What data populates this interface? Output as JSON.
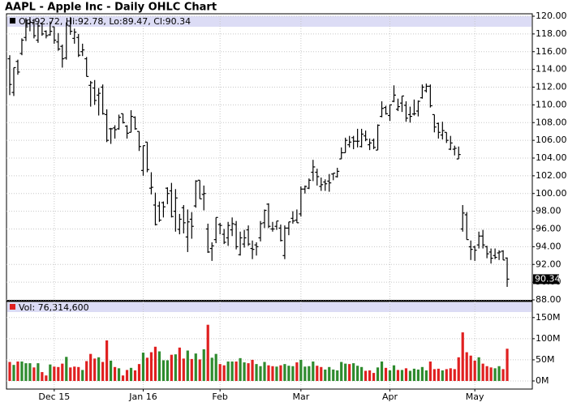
{
  "chart_data": {
    "type": "ohlc",
    "title": "AAPL - Apple Inc - Daily OHLC Chart",
    "legend_text": "Op:92.72, Hi:92.78, Lo:89.47, Cl:90.34",
    "bar_color": "#000000",
    "grid": true,
    "categories": [
      null,
      null,
      null,
      null,
      null,
      null,
      null,
      null,
      null,
      null,
      null,
      "Dec 15",
      null,
      null,
      null,
      null,
      null,
      null,
      null,
      null,
      null,
      null,
      null,
      null,
      null,
      null,
      null,
      null,
      null,
      null,
      null,
      null,
      null,
      "Jan 16",
      null,
      null,
      null,
      null,
      null,
      null,
      null,
      null,
      null,
      null,
      null,
      null,
      null,
      null,
      null,
      null,
      null,
      null,
      "Feb",
      null,
      null,
      null,
      null,
      null,
      null,
      null,
      null,
      null,
      null,
      null,
      null,
      null,
      null,
      null,
      null,
      null,
      null,
      null,
      "Mar",
      null,
      null,
      null,
      null,
      null,
      null,
      null,
      null,
      null,
      null,
      null,
      null,
      null,
      null,
      null,
      null,
      null,
      null,
      null,
      null,
      null,
      "Apr",
      null,
      null,
      null,
      null,
      null,
      null,
      null,
      null,
      null,
      null,
      null,
      null,
      null,
      null,
      null,
      null,
      null,
      null,
      null,
      null,
      "May",
      null,
      null,
      null,
      null,
      null,
      null,
      null,
      null
    ],
    "open": [
      115.2,
      111.4,
      114.9,
      115.8,
      117.6,
      119.2,
      119.3,
      117.3,
      119.2,
      118.3,
      117.9,
      118.8,
      117.1,
      116.6,
      115.3,
      118.9,
      117.5,
      117.6,
      116.0,
      115.2,
      112.2,
      111.9,
      111.1,
      112.0,
      108.9,
      107.3,
      107.4,
      107.3,
      109.0,
      107.6,
      106.9,
      108.6,
      107.0,
      102.6,
      105.8,
      100.6,
      98.7,
      98.6,
      98.97,
      100.6,
      100.3,
      98.0,
      95.96,
      98.4,
      95.1,
      97.1,
      98.6,
      101.5,
      99.9,
      96.0,
      93.8,
      94.8,
      96.5,
      95.4,
      95.0,
      95.9,
      96.5,
      93.1,
      94.3,
      95.9,
      93.8,
      94.2,
      95.0,
      96.7,
      98.8,
      96.0,
      96.3,
      96.1,
      93.0,
      96.1,
      97.2,
      97.0,
      97.7,
      100.5,
      100.6,
      102.4,
      102.4,
      100.8,
      101.3,
      101.4,
      102.2,
      101.9,
      103.9,
      104.6,
      105.5,
      106.3,
      105.9,
      105.3,
      106.5,
      105.5,
      106.0,
      104.9,
      108.7,
      109.7,
      108.8,
      110.4,
      109.5,
      110.2,
      109.95,
      108.9,
      108.97,
      109.3,
      110.8,
      111.6,
      112.1,
      108.9,
      107.9,
      106.6,
      106.9,
      105.0,
      105.0,
      103.9,
      96.0,
      97.6,
      93.99,
      93.97,
      94.2,
      95.2,
      94.0,
      93.4,
      93.0,
      93.3,
      93.5,
      92.72
    ],
    "high": [
      115.6,
      114.2,
      115.1,
      117.5,
      119.8,
      119.9,
      119.7,
      119.3,
      119.2,
      118.4,
      119.4,
      118.8,
      118.1,
      116.8,
      119.3,
      119.9,
      118.6,
      118.0,
      116.9,
      115.4,
      112.7,
      112.8,
      111.9,
      112.3,
      109.5,
      107.4,
      107.7,
      108.9,
      109.0,
      107.7,
      109.4,
      108.7,
      107.0,
      105.4,
      105.8,
      102.4,
      100.1,
      99.1,
      99.1,
      100.7,
      101.2,
      100.5,
      97.7,
      98.7,
      98.2,
      97.9,
      101.5,
      101.5,
      100.9,
      96.6,
      94.5,
      97.3,
      96.7,
      96.0,
      96.8,
      97.3,
      96.9,
      95.7,
      95.9,
      96.4,
      94.7,
      94.5,
      96.9,
      98.2,
      98.9,
      96.8,
      96.9,
      96.5,
      96.4,
      96.8,
      98.0,
      98.2,
      100.8,
      100.9,
      101.7,
      103.8,
      102.8,
      101.8,
      101.6,
      102.2,
      102.3,
      102.9,
      105.2,
      106.3,
      106.5,
      106.5,
      107.3,
      107.3,
      107.1,
      106.2,
      106.2,
      107.8,
      110.4,
      109.9,
      110.0,
      112.2,
      110.7,
      111.0,
      110.4,
      109.8,
      110.6,
      110.5,
      112.3,
      112.4,
      112.3,
      108.9,
      108.0,
      108.1,
      106.9,
      106.5,
      105.4,
      105.3,
      98.7,
      97.9,
      94.7,
      94.1,
      95.7,
      95.9,
      94.1,
      93.8,
      93.8,
      93.6,
      93.6,
      92.78
    ],
    "low": [
      111.1,
      111.0,
      113.4,
      115.6,
      117.2,
      118.3,
      117.5,
      117.0,
      117.8,
      117.5,
      117.8,
      116.9,
      116.1,
      114.2,
      115.1,
      117.9,
      116.9,
      115.4,
      115.5,
      113.2,
      109.8,
      110.0,
      108.8,
      108.9,
      105.8,
      105.6,
      106.2,
      107.2,
      107.9,
      106.2,
      106.9,
      107.2,
      104.8,
      102.0,
      102.4,
      99.9,
      96.4,
      96.8,
      97.3,
      98.8,
      97.3,
      95.7,
      95.4,
      95.5,
      93.4,
      94.9,
      98.4,
      99.4,
      98.1,
      93.3,
      92.4,
      94.4,
      95.4,
      94.3,
      94.1,
      95.2,
      93.7,
      93.0,
      93.9,
      94.1,
      92.6,
      93.0,
      94.6,
      96.1,
      96.1,
      95.7,
      95.9,
      94.6,
      92.6,
      95.3,
      96.6,
      96.7,
      97.4,
      100.0,
      100.5,
      101.4,
      100.9,
      100.3,
      100.3,
      100.2,
      101.5,
      101.8,
      103.9,
      104.6,
      105.2,
      105.0,
      105.2,
      105.2,
      105.9,
      104.9,
      105.0,
      104.9,
      108.6,
      108.9,
      108.2,
      110.3,
      109.3,
      109.2,
      108.1,
      108.0,
      108.8,
      108.7,
      110.7,
      111.4,
      109.7,
      106.9,
      106.2,
      106.1,
      105.7,
      104.9,
      104.3,
      103.9,
      95.7,
      94.8,
      92.5,
      92.4,
      93.8,
      93.8,
      92.7,
      92.1,
      92.6,
      92.5,
      92.5,
      89.47
    ],
    "close": [
      112.3,
      114.2,
      113.7,
      117.3,
      118.8,
      119.3,
      117.8,
      118.9,
      118.0,
      117.8,
      118.3,
      117.3,
      116.3,
      115.2,
      119.0,
      118.3,
      118.2,
      115.6,
      116.2,
      113.2,
      112.5,
      110.5,
      111.3,
      109.0,
      106.0,
      107.3,
      107.2,
      108.6,
      108.0,
      106.8,
      108.7,
      107.3,
      105.3,
      105.4,
      102.7,
      100.7,
      96.5,
      97.0,
      98.5,
      100.0,
      97.4,
      99.5,
      97.1,
      96.7,
      96.8,
      96.3,
      101.4,
      99.4,
      100.0,
      93.4,
      94.1,
      97.3,
      96.4,
      94.5,
      96.4,
      96.6,
      94.0,
      95.0,
      95.0,
      94.3,
      93.7,
      94.0,
      96.6,
      98.1,
      96.3,
      96.0,
      96.9,
      94.7,
      96.1,
      96.8,
      96.9,
      96.7,
      100.5,
      100.8,
      101.5,
      103.0,
      101.9,
      101.0,
      101.1,
      101.2,
      102.3,
      102.5,
      104.6,
      106.0,
      105.8,
      105.9,
      105.9,
      106.7,
      106.1,
      105.7,
      105.2,
      107.7,
      109.6,
      109.0,
      110.0,
      111.1,
      109.8,
      111.0,
      108.5,
      108.7,
      109.0,
      110.4,
      112.0,
      112.1,
      109.9,
      107.5,
      106.9,
      107.1,
      106.0,
      105.7,
      105.1,
      104.4,
      97.8,
      94.8,
      93.7,
      93.6,
      95.2,
      94.2,
      93.2,
      92.7,
      92.8,
      93.4,
      92.5,
      90.34
    ],
    "ylim": [
      88,
      120
    ],
    "yticks": [
      {
        "value": 88,
        "label": "88.00"
      },
      {
        "value": 90,
        "label": "90.00"
      },
      {
        "value": 92,
        "label": "92.00"
      },
      {
        "value": 94,
        "label": "94.00"
      },
      {
        "value": 96,
        "label": "96.00"
      },
      {
        "value": 98,
        "label": "98.00"
      },
      {
        "value": 100,
        "label": "100.00"
      },
      {
        "value": 102,
        "label": "102.00"
      },
      {
        "value": 104,
        "label": "104.00"
      },
      {
        "value": 106,
        "label": "106.00"
      },
      {
        "value": 108,
        "label": "108.00"
      },
      {
        "value": 110,
        "label": "110.00"
      },
      {
        "value": 112,
        "label": "112.00"
      },
      {
        "value": 114,
        "label": "114.00"
      },
      {
        "value": 116,
        "label": "116.00"
      },
      {
        "value": 118,
        "label": "118.00"
      },
      {
        "value": 120,
        "label": "120.00"
      }
    ],
    "volume": {
      "label": "Vol: 76,314,600",
      "up_color": "#2e8b2e",
      "down_color": "#e02020",
      "values": [
        45,
        38,
        46,
        46,
        42,
        42,
        32,
        42,
        21,
        13,
        39,
        34,
        33,
        41,
        57,
        32,
        34,
        33,
        26,
        47,
        64,
        53,
        56,
        45,
        96,
        48,
        33,
        30,
        13,
        26,
        31,
        25,
        40,
        67,
        55,
        68,
        81,
        70,
        49,
        49,
        62,
        63,
        79,
        53,
        72,
        52,
        65,
        51,
        75,
        133,
        55,
        64,
        40,
        37,
        46,
        46,
        46,
        54,
        44,
        42,
        50,
        40,
        35,
        45,
        37,
        35,
        34,
        37,
        40,
        36,
        35,
        44,
        50,
        34,
        35,
        46,
        36,
        33,
        27,
        33,
        27,
        25,
        45,
        41,
        40,
        42,
        36,
        33,
        24,
        25,
        19,
        32,
        46,
        31,
        25,
        37,
        26,
        26,
        30,
        24,
        29,
        27,
        33,
        25,
        46,
        28,
        29,
        25,
        28,
        30,
        28,
        56,
        115,
        68,
        60,
        48,
        56,
        41,
        35,
        32,
        30,
        35,
        28,
        76.3146
      ],
      "ylim": [
        0,
        188
      ],
      "yticks": [
        {
          "value": 0,
          "label": "0M"
        },
        {
          "value": 50,
          "label": "50M"
        },
        {
          "value": 100,
          "label": "100M"
        },
        {
          "value": 150,
          "label": "150M"
        }
      ]
    }
  }
}
